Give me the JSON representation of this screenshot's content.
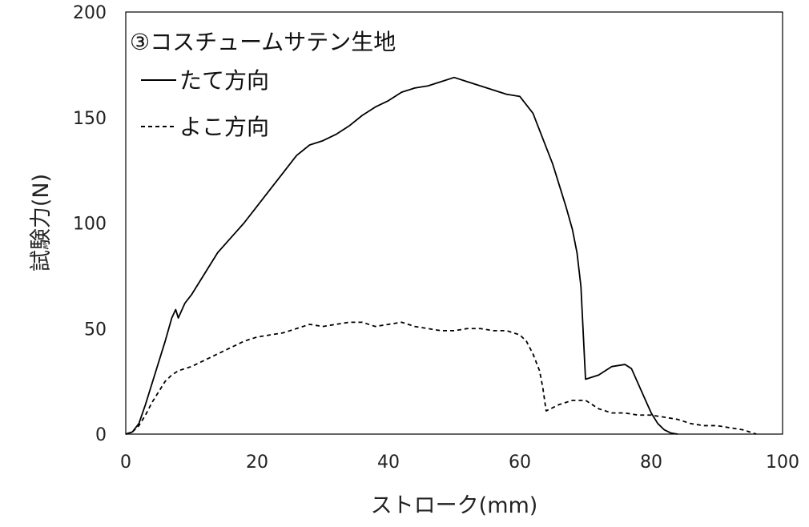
{
  "chart_data": {
    "type": "line",
    "title": "③コスチュームサテン生地",
    "xlabel": "ストローク(mm)",
    "ylabel": "試験力(N)",
    "xlim": [
      0,
      100
    ],
    "ylim": [
      0,
      200
    ],
    "x_ticks": [
      "0",
      "20",
      "40",
      "60",
      "80",
      "100"
    ],
    "y_ticks": [
      "0",
      "50",
      "100",
      "150",
      "200"
    ],
    "grid": false,
    "legend_placement": "top-left",
    "series": [
      {
        "name": "たて方向",
        "style": "solid",
        "color": "#000000",
        "x": [
          0,
          1,
          2,
          3,
          4,
          5,
          6,
          7,
          7.6,
          8,
          9,
          10,
          12,
          14,
          16,
          18,
          20,
          22,
          24,
          26,
          28,
          30,
          32,
          34,
          36,
          38,
          40,
          42,
          44,
          46,
          48,
          50,
          52,
          54,
          56,
          58,
          60,
          62,
          63,
          64,
          65,
          66,
          67,
          68,
          68.7,
          69.3,
          70,
          72,
          74,
          76,
          77,
          78,
          79,
          80,
          81,
          82,
          83,
          84
        ],
        "y": [
          0,
          1,
          5,
          14,
          24,
          34,
          44,
          55,
          59,
          55,
          62,
          66,
          76,
          86,
          93,
          100,
          108,
          116,
          124,
          132,
          137,
          139,
          142,
          146,
          151,
          155,
          158,
          162,
          164,
          165,
          167,
          169,
          167,
          165,
          163,
          161,
          160,
          152,
          144,
          136,
          128,
          118,
          108,
          97,
          86,
          70,
          26,
          28,
          32,
          33,
          31,
          24,
          17,
          10,
          5,
          2,
          0.5,
          0
        ]
      },
      {
        "name": "よこ方向",
        "style": "dashed",
        "color": "#000000",
        "x": [
          0,
          1,
          2,
          3,
          4,
          5,
          6,
          7,
          8,
          10,
          12,
          14,
          16,
          18,
          20,
          22,
          24,
          26,
          28,
          30,
          32,
          34,
          36,
          38,
          40,
          42,
          44,
          46,
          48,
          50,
          52,
          54,
          56,
          58,
          60,
          61,
          62,
          63,
          63.5,
          64,
          66,
          68,
          70,
          71,
          72,
          74,
          76,
          78,
          80,
          82,
          84,
          86,
          88,
          90,
          92,
          94,
          96
        ],
        "y": [
          0,
          1,
          4,
          9,
          15,
          20,
          25,
          28,
          30,
          32,
          35,
          38,
          41,
          44,
          46,
          47,
          48,
          50,
          52,
          51,
          52,
          53,
          53,
          51,
          52,
          53,
          51,
          50,
          49,
          49,
          50,
          50,
          49,
          49,
          47,
          44,
          38,
          30,
          22,
          11,
          14,
          16,
          16,
          14,
          12,
          10,
          10,
          9,
          9,
          8,
          7,
          5,
          4,
          4,
          3,
          2,
          0
        ]
      }
    ]
  }
}
